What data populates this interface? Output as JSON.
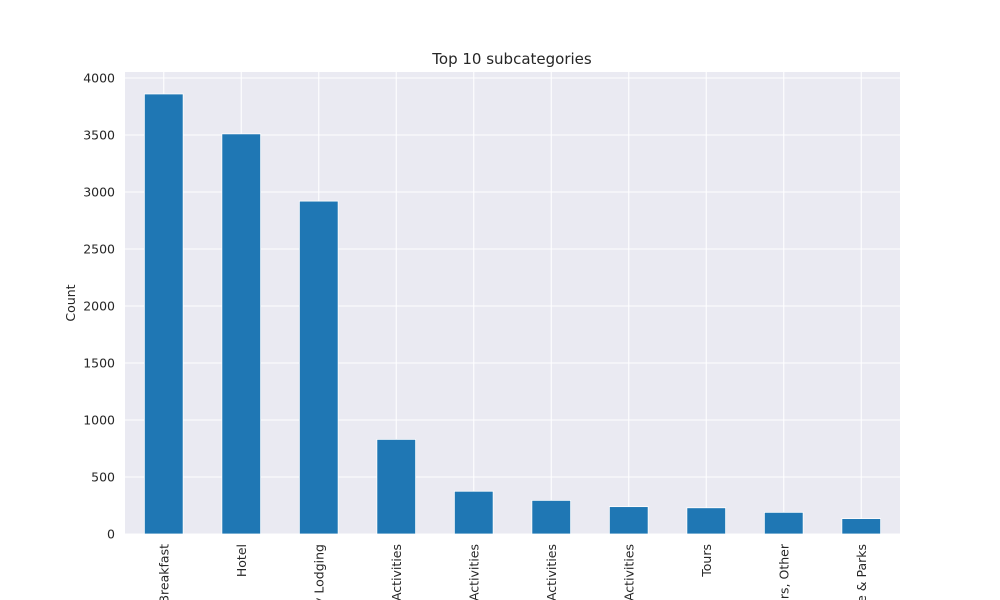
{
  "chart_data": {
    "type": "bar",
    "title": "Top 10 subcategories",
    "xlabel": "",
    "ylabel": "Count",
    "ylim": [
      0,
      4000
    ],
    "yticks": [
      0,
      500,
      1000,
      1500,
      2000,
      2500,
      3000,
      3500,
      4000
    ],
    "categories": [
      "Breakfast",
      "Hotel",
      "y Lodging",
      "Activities",
      "Activities",
      "Activities",
      "Activities",
      "Tours",
      "rs, Other",
      "e & Parks"
    ],
    "values": [
      3860,
      3510,
      2920,
      830,
      375,
      295,
      240,
      230,
      190,
      135
    ],
    "grid": true,
    "legend": "none",
    "colors": {
      "bar": "#1f77b4",
      "plot_background": "#eaeaf2",
      "grid": "#ffffff",
      "text": "#262626"
    }
  }
}
